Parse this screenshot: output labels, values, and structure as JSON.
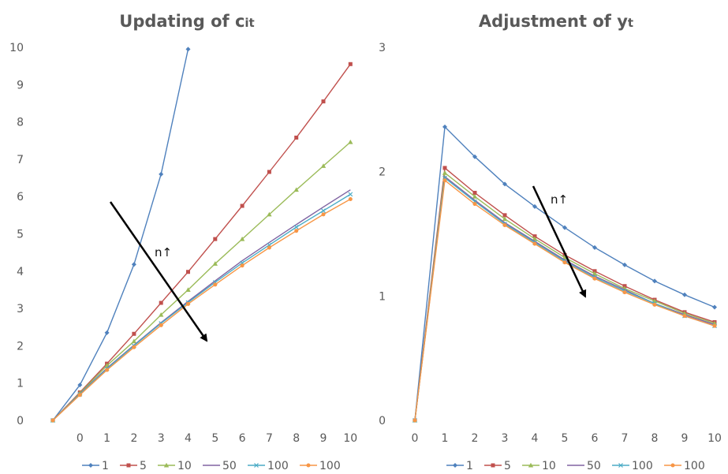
{
  "chart_data": [
    {
      "type": "line",
      "title": "Updating of c",
      "title_sub": "it",
      "xlabel": "",
      "ylabel": "",
      "ylim": [
        0,
        10
      ],
      "grid": false,
      "legend_position": "bottom",
      "y_ticks": [
        0,
        1,
        2,
        3,
        4,
        5,
        6,
        7,
        8,
        9,
        10
      ],
      "categories": [
        "",
        "0",
        "1",
        "2",
        "3",
        "4",
        "5",
        "6",
        "7",
        "8",
        "9",
        "10"
      ],
      "series": [
        {
          "name": "1",
          "color": "#4F81BD",
          "marker": "diamond",
          "values": [
            0,
            0.95,
            2.35,
            4.18,
            6.6,
            9.95,
            null,
            null,
            null,
            null,
            null,
            null
          ]
        },
        {
          "name": "5",
          "color": "#C0504D",
          "marker": "square",
          "values": [
            0,
            0.75,
            1.52,
            2.32,
            3.15,
            3.98,
            4.86,
            5.75,
            6.66,
            7.58,
            8.55,
            9.55
          ]
        },
        {
          "name": "10",
          "color": "#9BBB59",
          "marker": "triangle",
          "values": [
            0,
            0.73,
            1.47,
            2.12,
            2.83,
            3.5,
            4.2,
            4.86,
            5.52,
            6.18,
            6.82,
            7.46
          ]
        },
        {
          "name": "50",
          "color": "#8064A2",
          "marker": "none",
          "values": [
            0,
            0.71,
            1.4,
            2.02,
            2.62,
            3.19,
            3.74,
            4.28,
            4.77,
            5.25,
            5.72,
            6.18
          ]
        },
        {
          "name": "100",
          "color": "#4BACC6",
          "marker": "cross",
          "values": [
            0,
            0.7,
            1.38,
            2.0,
            2.6,
            3.16,
            3.7,
            4.22,
            4.7,
            5.18,
            5.62,
            6.06
          ]
        },
        {
          "name": "100",
          "color": "#F79646",
          "marker": "circle",
          "values": [
            0,
            0.68,
            1.35,
            1.96,
            2.55,
            3.12,
            3.64,
            4.15,
            4.63,
            5.08,
            5.52,
            5.93
          ]
        }
      ],
      "annotation": {
        "text": "n↑"
      }
    },
    {
      "type": "line",
      "title": "Adjustment of y",
      "title_sub": "t",
      "xlabel": "",
      "ylabel": "",
      "ylim": [
        0,
        3
      ],
      "grid": false,
      "legend_position": "bottom",
      "y_ticks": [
        0,
        1,
        2,
        3
      ],
      "categories": [
        "0",
        "1",
        "2",
        "3",
        "4",
        "5",
        "6",
        "7",
        "8",
        "9",
        "10"
      ],
      "series": [
        {
          "name": "1",
          "color": "#4F81BD",
          "marker": "diamond",
          "values": [
            0,
            2.36,
            2.12,
            1.9,
            1.72,
            1.55,
            1.39,
            1.25,
            1.12,
            1.01,
            0.91
          ]
        },
        {
          "name": "5",
          "color": "#C0504D",
          "marker": "square",
          "values": [
            0,
            2.03,
            1.83,
            1.65,
            1.48,
            1.33,
            1.2,
            1.08,
            0.97,
            0.87,
            0.79
          ]
        },
        {
          "name": "10",
          "color": "#9BBB59",
          "marker": "triangle",
          "values": [
            0,
            1.99,
            1.8,
            1.62,
            1.46,
            1.31,
            1.18,
            1.06,
            0.96,
            0.86,
            0.78
          ]
        },
        {
          "name": "50",
          "color": "#8064A2",
          "marker": "none",
          "values": [
            0,
            1.96,
            1.77,
            1.59,
            1.44,
            1.29,
            1.16,
            1.05,
            0.94,
            0.85,
            0.77
          ]
        },
        {
          "name": "100",
          "color": "#4BACC6",
          "marker": "cross",
          "values": [
            0,
            1.95,
            1.76,
            1.58,
            1.43,
            1.28,
            1.15,
            1.04,
            0.94,
            0.84,
            0.76
          ]
        },
        {
          "name": "100",
          "color": "#F79646",
          "marker": "circle",
          "values": [
            0,
            1.93,
            1.74,
            1.57,
            1.42,
            1.27,
            1.14,
            1.03,
            0.93,
            0.84,
            0.76
          ]
        }
      ],
      "annotation": {
        "text": "n↑"
      }
    }
  ]
}
